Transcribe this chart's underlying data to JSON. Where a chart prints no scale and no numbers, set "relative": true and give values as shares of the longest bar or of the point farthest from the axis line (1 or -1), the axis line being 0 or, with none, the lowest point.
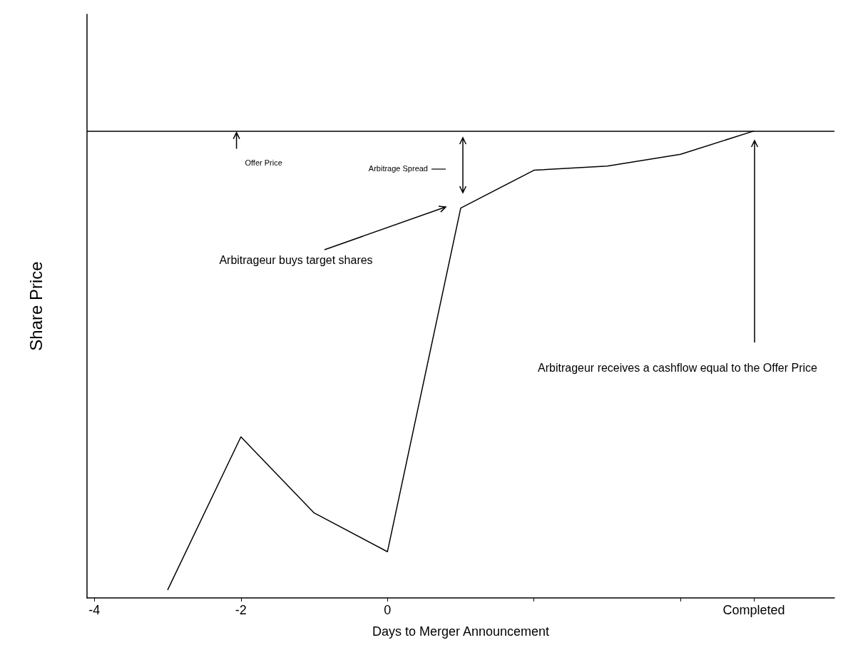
{
  "chart_data": {
    "type": "line",
    "relative": true,
    "xlabel": "Days to Merger Announcement",
    "ylabel": "Share Price",
    "x": [
      -3,
      -2,
      -1,
      0,
      1,
      2,
      3,
      4,
      5
    ],
    "series": [
      {
        "color": "#000000",
        "values": [
          0.017,
          0.345,
          0.182,
          0.099,
          0.835,
          0.916,
          0.925,
          0.95,
          1.0
        ]
      }
    ],
    "xlim": [
      -4.1,
      6.1
    ],
    "xticks": [
      -4,
      -2,
      0,
      {
        "value": 2,
        "label": null
      },
      {
        "value": 4,
        "label": null
      },
      {
        "value": 5,
        "label": "Completed"
      }
    ],
    "marker": "none",
    "line_style": "solid",
    "grid": false,
    "ref_lines": [
      {
        "axis": "y",
        "value": 1,
        "label": "Offer Price",
        "color": "#000000"
      }
    ],
    "annotations": [
      "Arbitrageur buys target shares",
      "Arbitrage Spread",
      "Arbitrageur receives a cashflow equal to the Offer Price"
    ]
  }
}
